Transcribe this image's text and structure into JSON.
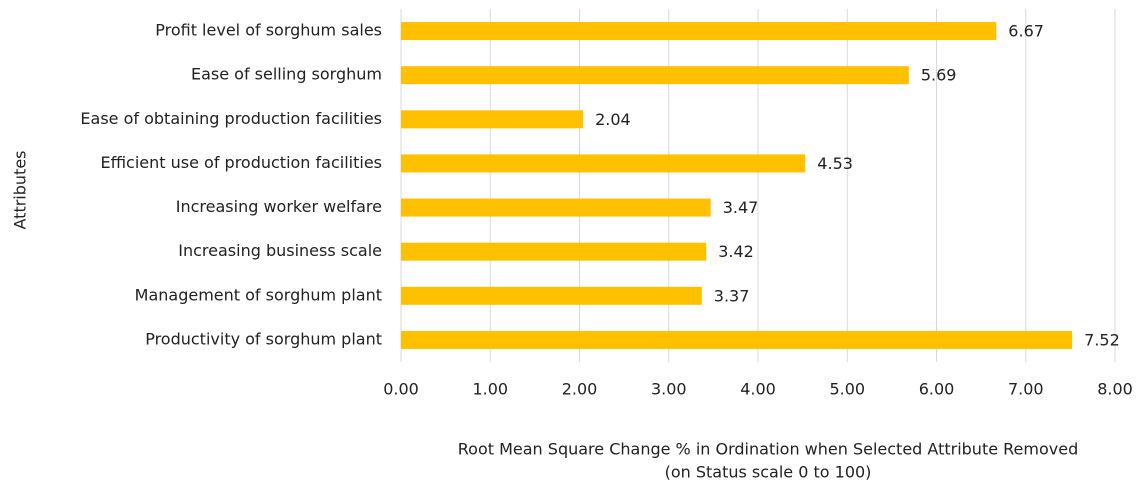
{
  "chart_data": {
    "type": "bar",
    "orientation": "horizontal",
    "categories": [
      "Profit level of sorghum sales",
      "Ease of selling sorghum",
      "Ease of obtaining production facilities",
      "Efficient use of production facilities",
      "Increasing worker welfare",
      "Increasing business scale",
      "Management of sorghum plant",
      "Productivity of sorghum plant"
    ],
    "values": [
      6.67,
      5.69,
      2.04,
      4.53,
      3.47,
      3.42,
      3.37,
      7.52
    ],
    "color": "#ffc000",
    "xlim": [
      0,
      8
    ],
    "xticks": [
      {
        "value": 0,
        "label": "0.00"
      },
      {
        "value": 1,
        "label": "1.00"
      },
      {
        "value": 2,
        "label": "2.00"
      },
      {
        "value": 3,
        "label": "3.00"
      },
      {
        "value": 4,
        "label": "4.00"
      },
      {
        "value": 5,
        "label": "5.00"
      },
      {
        "value": 6,
        "label": "6.00"
      },
      {
        "value": 7,
        "label": "7.00"
      },
      {
        "value": 8,
        "label": "8.00"
      }
    ],
    "grid": true,
    "x_label": [
      "Root Mean Square Change % in Ordination when Selected Attribute Removed",
      "(on Status scale 0 to 100)"
    ],
    "y_label": "Attributes"
  }
}
